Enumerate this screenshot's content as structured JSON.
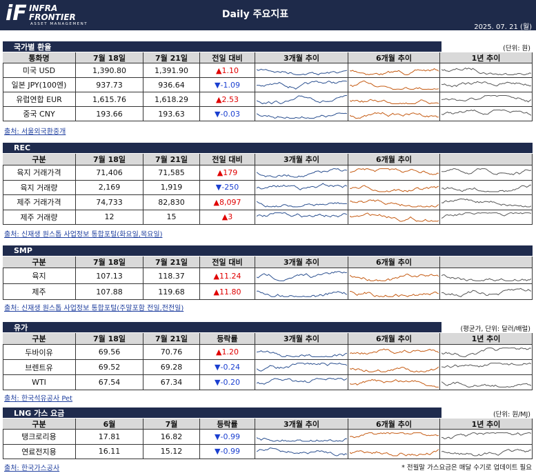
{
  "header": {
    "logo_mark": "iF",
    "logo_line1": "INFRA",
    "logo_line2": "FRONTIER",
    "logo_sub": "ASSET MANAGEMENT",
    "title": "Daily 주요지표",
    "date": "2025. 07. 21 (월)"
  },
  "spark_colors": [
    "#2a4f8f",
    "#c55a11",
    "#555555"
  ],
  "sections": [
    {
      "title": "국가별 환율",
      "unit": "(단위: 원)",
      "columns": [
        "통화명",
        "7월 18일",
        "7월 21일",
        "전일 대비",
        "3개월 추이",
        "6개월 추이",
        "1년 추이"
      ],
      "rows": [
        [
          "미국 USD",
          "1,390.80",
          "1,391.90",
          "▲1.10"
        ],
        [
          "일본 JPY(100엔)",
          "937.73",
          "936.64",
          "▼-1.09"
        ],
        [
          "유럽연합 EUR",
          "1,615.76",
          "1,618.29",
          "▲2.53"
        ],
        [
          "중국 CNY",
          "193.66",
          "193.63",
          "▼-0.03"
        ]
      ],
      "source": "출처: 서울외국환중개"
    },
    {
      "title": "REC",
      "columns": [
        "구분",
        "7월 18일",
        "7월 21일",
        "전일 대비",
        "3개월 추이",
        "6개월 추이"
      ],
      "rows": [
        [
          "육지 거래가격",
          "71,406",
          "71,585",
          "▲179"
        ],
        [
          "육지 거래량",
          "2,169",
          "1,919",
          "▼-250"
        ],
        [
          "제주 거래가격",
          "74,733",
          "82,830",
          "▲8,097"
        ],
        [
          "제주 거래량",
          "12",
          "15",
          "▲3"
        ]
      ],
      "source": "출처: 신재생 원스톱 사업정보 통합포털(화요일,목요일)"
    },
    {
      "title": "SMP",
      "columns": [
        "구분",
        "7월 18일",
        "7월 21일",
        "전일 대비",
        "3개월 추이",
        "6개월 추이"
      ],
      "rows": [
        [
          "육지",
          "107.13",
          "118.37",
          "▲11.24"
        ],
        [
          "제주",
          "107.88",
          "119.68",
          "▲11.80"
        ]
      ],
      "source": "출처: 신재생 원스톱 사업정보 통합포털(주말포함 전일,전전일)"
    },
    {
      "title": "유가",
      "unit": "(평균가, 단위: 달러/배럴)",
      "columns": [
        "구분",
        "7월 18일",
        "7월 21일",
        "등락률",
        "3개월 추이",
        "6개월 추이",
        "1년 추이"
      ],
      "rows": [
        [
          "두바이유",
          "69.56",
          "70.76",
          "▲1.20"
        ],
        [
          "브렌트유",
          "69.52",
          "69.28",
          "▼-0.24"
        ],
        [
          "WTI",
          "67.54",
          "67.34",
          "▼-0.20"
        ]
      ],
      "source": "출처: 한국석유공사 Pet"
    },
    {
      "title": "LNG 가스 요금",
      "unit": "(단위: 원/MJ)",
      "columns": [
        "구분",
        "6월",
        "7월",
        "등락률",
        "3개월 추이",
        "6개월 추이",
        "1년 추이"
      ],
      "rows": [
        [
          "탱크로리용",
          "17.81",
          "16.82",
          "▼-0.99"
        ],
        [
          "연료전지용",
          "16.11",
          "15.12",
          "▼-0.99"
        ]
      ],
      "source": "출처: 한국가스공사"
    }
  ],
  "footnote": "* 전월말 가스요금은 매달 수기로 업데이트 필요"
}
